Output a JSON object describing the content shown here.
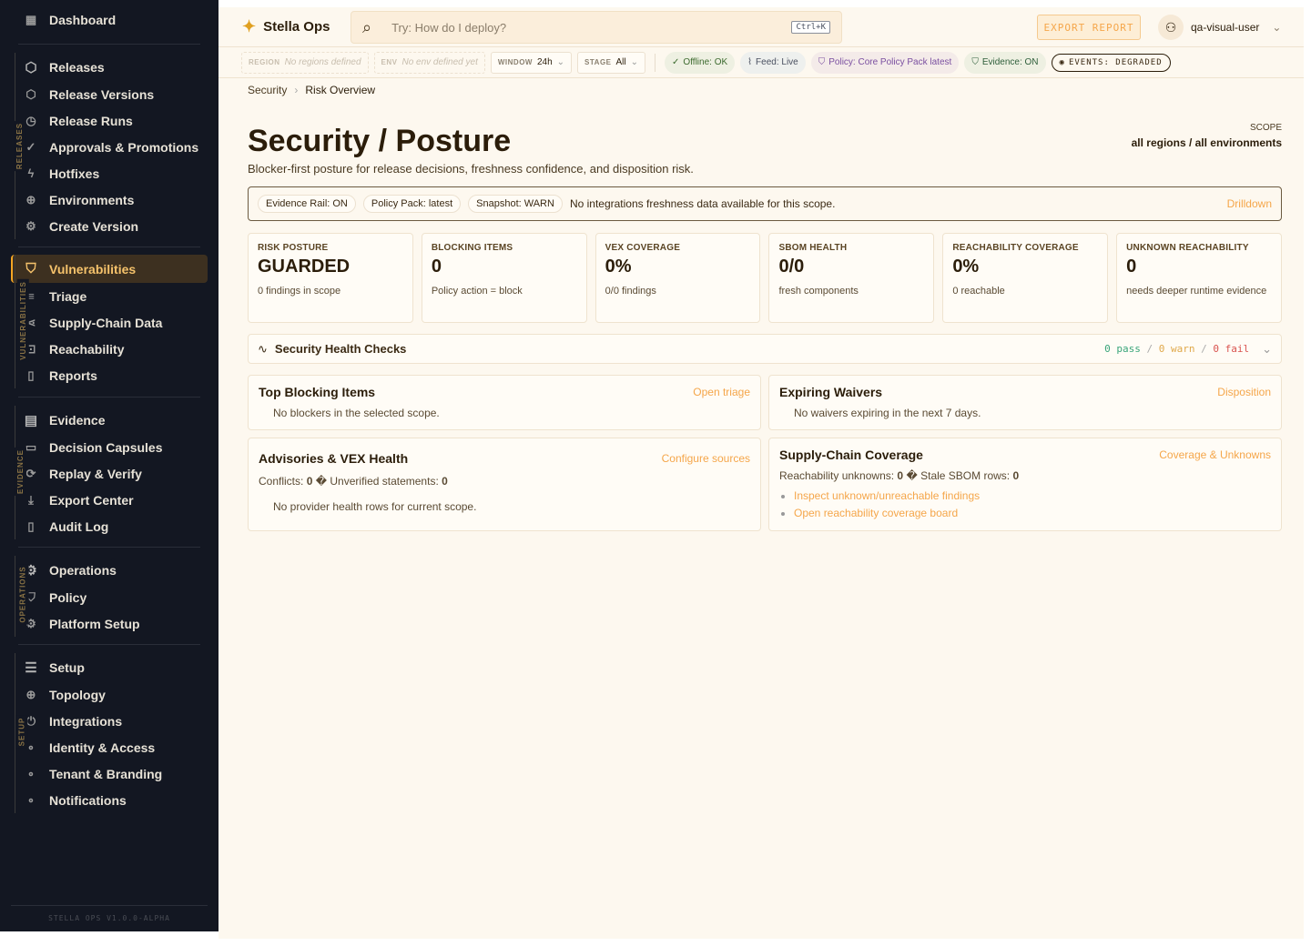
{
  "sidebar": {
    "dashboard": "Dashboard",
    "groups": [
      {
        "label": "RELEASES",
        "items": [
          "Releases",
          "Release Versions",
          "Release Runs",
          "Approvals & Promotions",
          "Hotfixes",
          "Environments",
          "Create Version"
        ]
      },
      {
        "label": "VULNERABILITIES",
        "items": [
          "Vulnerabilities",
          "Triage",
          "Supply-Chain Data",
          "Reachability",
          "Reports"
        ]
      },
      {
        "label": "EVIDENCE",
        "items": [
          "Evidence",
          "Decision Capsules",
          "Replay & Verify",
          "Export Center",
          "Audit Log"
        ]
      },
      {
        "label": "OPERATIONS",
        "items": [
          "Operations",
          "Policy",
          "Platform Setup"
        ]
      },
      {
        "label": "SETUP",
        "items": [
          "Setup",
          "Topology",
          "Integrations",
          "Identity & Access",
          "Tenant & Branding",
          "Notifications"
        ]
      }
    ],
    "active": "Vulnerabilities",
    "footer": "STELLA OPS V1.0.0-ALPHA"
  },
  "header": {
    "brand": "Stella Ops",
    "search_placeholder": "Try: How do I deploy?",
    "shortcut": "Ctrl+K",
    "export": "EXPORT REPORT",
    "user": "qa-visual-user"
  },
  "filters": {
    "region": {
      "key": "REGION",
      "value": "No regions defined"
    },
    "env": {
      "key": "ENV",
      "value": "No env defined yet"
    },
    "window": {
      "key": "WINDOW",
      "value": "24h"
    },
    "stage": {
      "key": "STAGE",
      "value": "All"
    },
    "chips": [
      "Offline: OK",
      "Feed: Live",
      "Policy: Core Policy Pack latest",
      "Evidence: ON",
      "EVENTS: DEGRADED"
    ]
  },
  "breadcrumb": [
    "Security",
    "Risk Overview"
  ],
  "page": {
    "title": "Security / Posture",
    "subtitle": "Blocker-first posture for release decisions, freshness confidence, and disposition risk.",
    "scope_label": "SCOPE",
    "scope_value": "all regions / all environments"
  },
  "rail": {
    "pills": [
      "Evidence Rail: ON",
      "Policy Pack: latest",
      "Snapshot: WARN"
    ],
    "message": "No integrations freshness data available for this scope.",
    "link": "Drilldown"
  },
  "cards": [
    {
      "label": "RISK POSTURE",
      "value": "GUARDED",
      "detail": "0 findings in scope"
    },
    {
      "label": "BLOCKING ITEMS",
      "value": "0",
      "detail": "Policy action = block"
    },
    {
      "label": "VEX COVERAGE",
      "value": "0%",
      "detail": "0/0 findings"
    },
    {
      "label": "SBOM HEALTH",
      "value": "0/0",
      "detail": "fresh components"
    },
    {
      "label": "REACHABILITY COVERAGE",
      "value": "0%",
      "detail": "0 reachable"
    },
    {
      "label": "UNKNOWN REACHABILITY",
      "value": "0",
      "detail": "needs deeper runtime evidence"
    }
  ],
  "health": {
    "title": "Security Health Checks",
    "pass": "0 pass",
    "warn": "0 warn",
    "fail": "0 fail",
    "sep": "/"
  },
  "panels": {
    "blocking": {
      "title": "Top Blocking Items",
      "link": "Open triage",
      "empty": "No blockers in the selected scope."
    },
    "waivers": {
      "title": "Expiring Waivers",
      "link": "Disposition",
      "empty": "No waivers expiring in the next 7 days."
    },
    "advisories": {
      "title": "Advisories & VEX Health",
      "link": "Configure sources",
      "conflicts_label": "Conflicts:",
      "conflicts": "0",
      "sep": "�",
      "unverified_label": "Unverified statements:",
      "unverified": "0",
      "empty": "No provider health rows for current scope."
    },
    "supply": {
      "title": "Supply-Chain Coverage",
      "link": "Coverage & Unknowns",
      "unknowns_label": "Reachability unknowns:",
      "unknowns": "0",
      "sep": "�",
      "stale_label": "Stale SBOM rows:",
      "stale": "0",
      "links": [
        "Inspect unknown/unreachable findings",
        "Open reachability coverage board"
      ]
    }
  },
  "colors": {
    "accent": "#f5a64a",
    "sidebar": "#131722",
    "pass": "#3aa57a",
    "warn": "#e0a84a",
    "fail": "#d9534f"
  }
}
